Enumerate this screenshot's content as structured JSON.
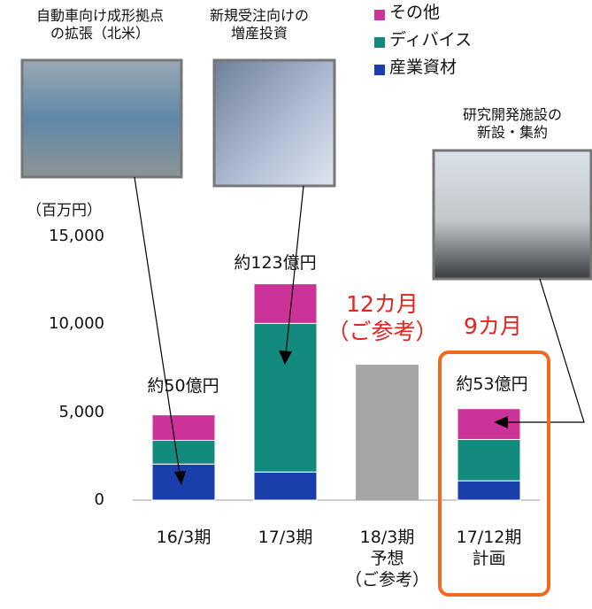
{
  "chart_data": {
    "type": "stacked_bar",
    "y_label": "（百万円）",
    "categories": [
      "16/3期",
      "17/3期",
      "18/3期\n予想\n（ご参考）",
      "17/12期\n計画"
    ],
    "series": [
      {
        "name": "産業資材",
        "color": "#1a3faa",
        "values": [
          2050,
          1600,
          null,
          1100
        ]
      },
      {
        "name": "ディバイス",
        "color": "#138a7e",
        "values": [
          1350,
          8450,
          null,
          2350
        ]
      },
      {
        "name": "その他",
        "color": "#cc3399",
        "values": [
          1450,
          2250,
          null,
          1750
        ]
      }
    ],
    "forecast": {
      "color": "#a6a6a6",
      "values": [
        null,
        null,
        7700,
        null
      ]
    },
    "ylim": [
      0,
      15000
    ],
    "yticks": [
      0,
      {
        "value": 5000,
        "label": "5,000"
      },
      {
        "value": 10000,
        "label": "10,000"
      },
      {
        "value": 15000,
        "label": "15,000"
      }
    ],
    "annotations": [
      "約50億円",
      "約123億円",
      "12カ月\n（ご参考）",
      "9カ月",
      "約53億円"
    ],
    "captions": [
      "自動車向け成形拠点\nの拡張（北米）",
      "新規受注向けの\n増産投資",
      "研究開発施設の\n新設・集約"
    ]
  }
}
